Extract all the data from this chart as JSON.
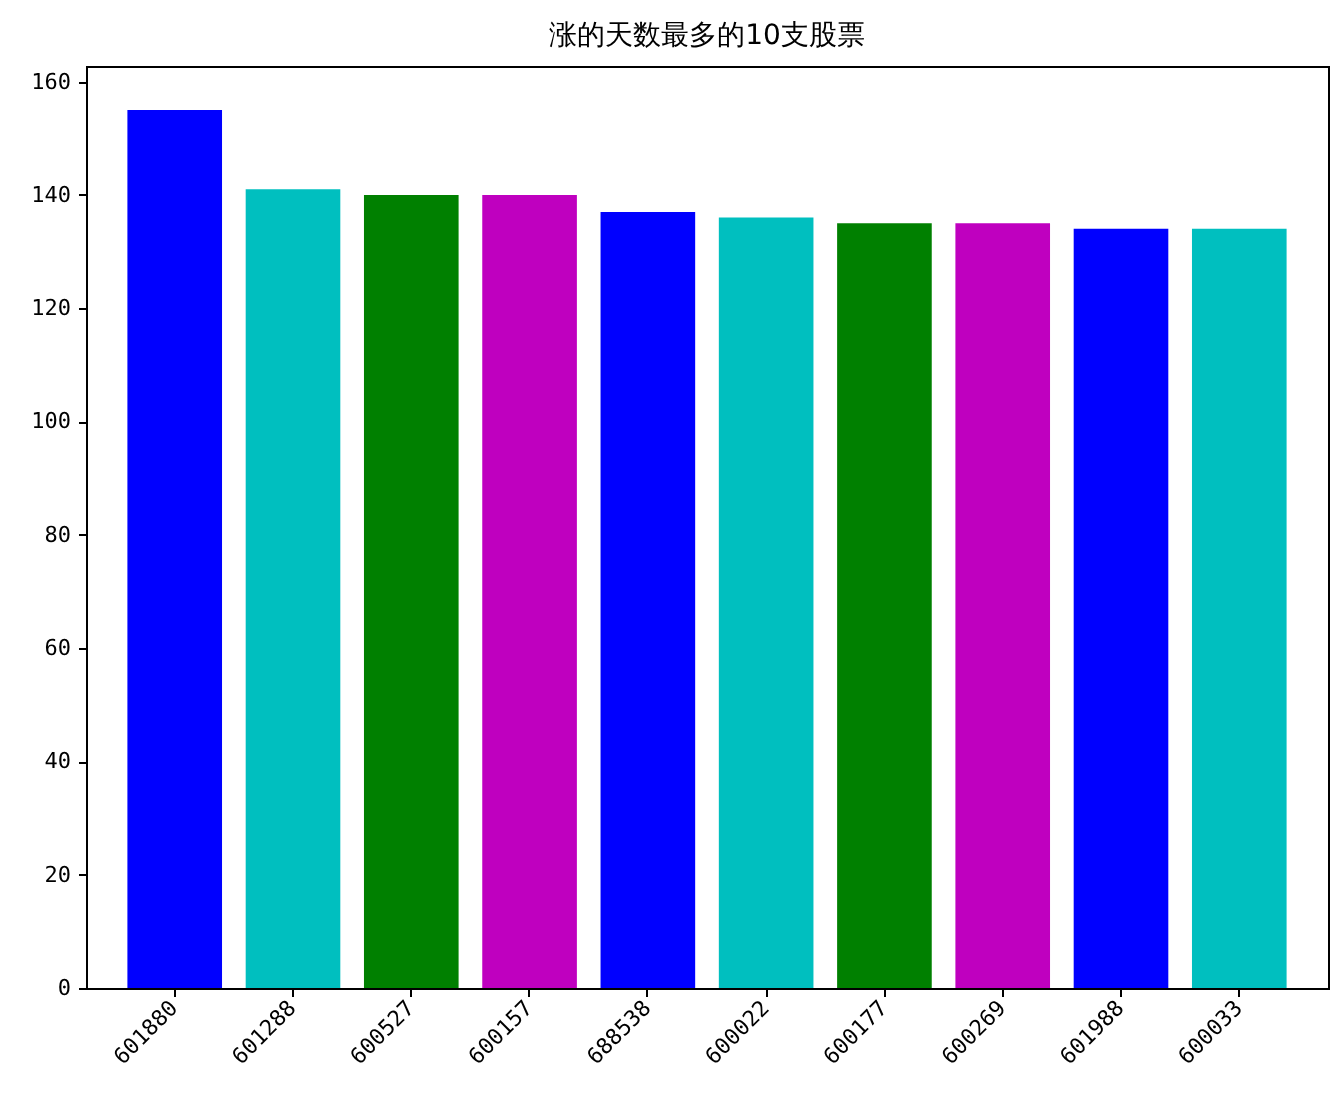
{
  "chart_data": {
    "type": "bar",
    "title": "涨的天数最多的10支股票",
    "categories": [
      "601880",
      "601288",
      "600527",
      "600157",
      "688538",
      "600022",
      "600177",
      "600269",
      "601988",
      "600033"
    ],
    "values": [
      155,
      141,
      140,
      140,
      137,
      136,
      135,
      135,
      134,
      134
    ],
    "colors": [
      "#0000ff",
      "#00bfbf",
      "#008000",
      "#bf00bf",
      "#0000ff",
      "#00bfbf",
      "#008000",
      "#bf00bf",
      "#0000ff",
      "#00bfbf"
    ],
    "ylim": [
      0,
      162.75
    ],
    "yticks": [
      0,
      20,
      40,
      60,
      80,
      100,
      120,
      140,
      160
    ],
    "grid": false
  }
}
